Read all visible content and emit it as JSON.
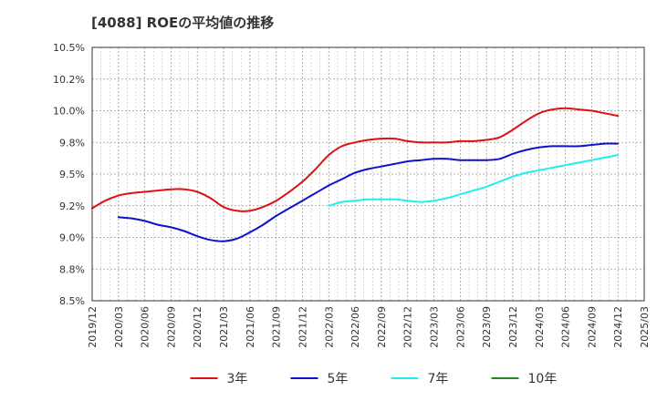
{
  "chart_data": {
    "type": "line",
    "title": "[4088]  ROEの平均値の推移",
    "xlabel": "",
    "ylabel": "",
    "ylim": [
      8.5,
      10.5
    ],
    "y_ticks": [
      "8.5%",
      "8.8%",
      "9.0%",
      "9.2%",
      "9.5%",
      "9.8%",
      "10.0%",
      "10.2%",
      "10.5%"
    ],
    "y_tick_values": [
      8.5,
      8.75,
      9.0,
      9.25,
      9.5,
      9.75,
      10.0,
      10.25,
      10.5
    ],
    "x_ticks": [
      "2019/12",
      "2020/03",
      "2020/06",
      "2020/09",
      "2020/12",
      "2021/03",
      "2021/06",
      "2021/09",
      "2021/12",
      "2022/03",
      "2022/06",
      "2022/09",
      "2022/12",
      "2023/03",
      "2023/06",
      "2023/09",
      "2023/12",
      "2024/03",
      "2024/06",
      "2024/09",
      "2024/12",
      "2025/03"
    ],
    "grid": true,
    "legend_position": "bottom",
    "series": [
      {
        "name": "3年",
        "color": "#dd1111",
        "points": [
          [
            0,
            9.23
          ],
          [
            0.5,
            9.29
          ],
          [
            1,
            9.33
          ],
          [
            1.5,
            9.35
          ],
          [
            2,
            9.36
          ],
          [
            2.5,
            9.37
          ],
          [
            3,
            9.38
          ],
          [
            3.5,
            9.38
          ],
          [
            4,
            9.36
          ],
          [
            4.5,
            9.31
          ],
          [
            5,
            9.24
          ],
          [
            5.5,
            9.21
          ],
          [
            6,
            9.21
          ],
          [
            6.5,
            9.24
          ],
          [
            7,
            9.29
          ],
          [
            7.5,
            9.36
          ],
          [
            8,
            9.44
          ],
          [
            8.5,
            9.54
          ],
          [
            9,
            9.65
          ],
          [
            9.5,
            9.72
          ],
          [
            10,
            9.75
          ],
          [
            10.5,
            9.77
          ],
          [
            11,
            9.78
          ],
          [
            11.5,
            9.78
          ],
          [
            12,
            9.76
          ],
          [
            12.5,
            9.75
          ],
          [
            13,
            9.75
          ],
          [
            13.5,
            9.75
          ],
          [
            14,
            9.76
          ],
          [
            14.5,
            9.76
          ],
          [
            15,
            9.77
          ],
          [
            15.5,
            9.79
          ],
          [
            16,
            9.85
          ],
          [
            16.5,
            9.92
          ],
          [
            17,
            9.98
          ],
          [
            17.5,
            10.01
          ],
          [
            18,
            10.02
          ],
          [
            18.5,
            10.01
          ],
          [
            19,
            10.0
          ],
          [
            19.5,
            9.98
          ],
          [
            20,
            9.96
          ]
        ]
      },
      {
        "name": "5年",
        "color": "#1111cc",
        "points": [
          [
            1,
            9.16
          ],
          [
            1.5,
            9.15
          ],
          [
            2,
            9.13
          ],
          [
            2.5,
            9.1
          ],
          [
            3,
            9.08
          ],
          [
            3.5,
            9.05
          ],
          [
            4,
            9.01
          ],
          [
            4.5,
            8.98
          ],
          [
            5,
            8.97
          ],
          [
            5.5,
            8.99
          ],
          [
            6,
            9.04
          ],
          [
            6.5,
            9.1
          ],
          [
            7,
            9.17
          ],
          [
            7.5,
            9.23
          ],
          [
            8,
            9.29
          ],
          [
            8.5,
            9.35
          ],
          [
            9,
            9.41
          ],
          [
            9.5,
            9.46
          ],
          [
            10,
            9.51
          ],
          [
            10.5,
            9.54
          ],
          [
            11,
            9.56
          ],
          [
            11.5,
            9.58
          ],
          [
            12,
            9.6
          ],
          [
            12.5,
            9.61
          ],
          [
            13,
            9.62
          ],
          [
            13.5,
            9.62
          ],
          [
            14,
            9.61
          ],
          [
            14.5,
            9.61
          ],
          [
            15,
            9.61
          ],
          [
            15.5,
            9.62
          ],
          [
            16,
            9.66
          ],
          [
            16.5,
            9.69
          ],
          [
            17,
            9.71
          ],
          [
            17.5,
            9.72
          ],
          [
            18,
            9.72
          ],
          [
            18.5,
            9.72
          ],
          [
            19,
            9.73
          ],
          [
            19.5,
            9.74
          ],
          [
            20,
            9.74
          ]
        ]
      },
      {
        "name": "7年",
        "color": "#22eeee",
        "points": [
          [
            9,
            9.25
          ],
          [
            9.5,
            9.28
          ],
          [
            10,
            9.29
          ],
          [
            10.5,
            9.3
          ],
          [
            11,
            9.3
          ],
          [
            11.5,
            9.3
          ],
          [
            12,
            9.29
          ],
          [
            12.5,
            9.28
          ],
          [
            13,
            9.29
          ],
          [
            13.5,
            9.31
          ],
          [
            14,
            9.34
          ],
          [
            14.5,
            9.37
          ],
          [
            15,
            9.4
          ],
          [
            15.5,
            9.44
          ],
          [
            16,
            9.48
          ],
          [
            16.5,
            9.51
          ],
          [
            17,
            9.53
          ],
          [
            17.5,
            9.55
          ],
          [
            18,
            9.57
          ],
          [
            18.5,
            9.59
          ],
          [
            19,
            9.61
          ],
          [
            19.5,
            9.63
          ],
          [
            20,
            9.65
          ]
        ]
      },
      {
        "name": "10年",
        "color": "#228822",
        "points": []
      }
    ]
  }
}
